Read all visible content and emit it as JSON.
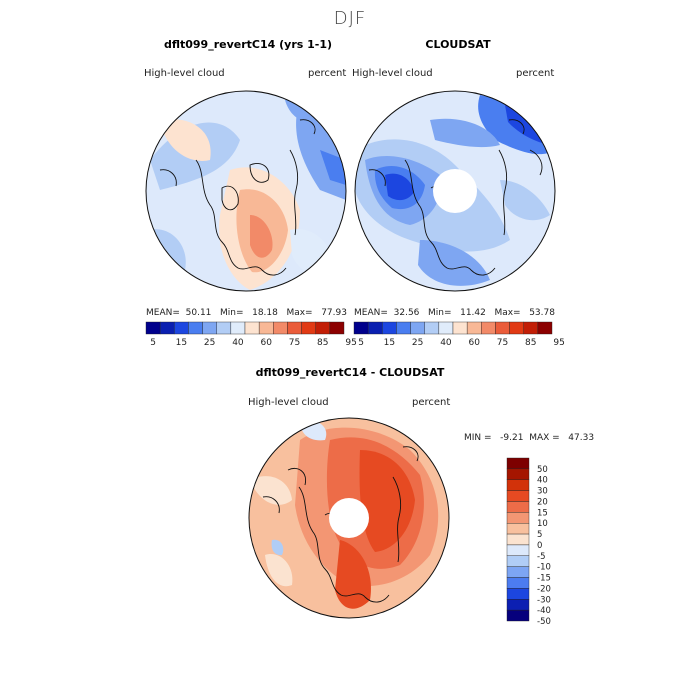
{
  "figure": {
    "title": "DJF"
  },
  "colors": {
    "abs": [
      "#00008c",
      "#0a1fb0",
      "#1c46e0",
      "#4a7ef0",
      "#7ea6f2",
      "#b2cdf5",
      "#e0ecfb",
      "#fde3d0",
      "#f8b896",
      "#f28a68",
      "#ea5c3a",
      "#e13a14",
      "#c21e06",
      "#8c0000"
    ],
    "diff": [
      "#06007d",
      "#0c1fb2",
      "#1c46e0",
      "#4c7cf0",
      "#7da5f3",
      "#b0cdf6",
      "#dde9fb",
      "#fbe3d0",
      "#f8c09e",
      "#f39673",
      "#ed6c48",
      "#e64a22",
      "#d2320a",
      "#a51500",
      "#7d0000"
    ]
  },
  "chart_data": [
    {
      "type": "heatmap",
      "projection": "polar-stereographic-north",
      "title": "dflt099_revertC14 (yrs 1-1)",
      "left_label": "High-level  cloud",
      "right_label": "percent",
      "stats": {
        "mean_label": "MEAN=",
        "mean": "50.11",
        "min_label": "Min=",
        "min": "18.18",
        "max_label": "Max=",
        "max": "77.93"
      },
      "colorbar_ticks": [
        "5",
        "15",
        "25",
        "40",
        "60",
        "75",
        "85",
        "95"
      ],
      "has_pole_gap": false
    },
    {
      "type": "heatmap",
      "projection": "polar-stereographic-north",
      "title": "CLOUDSAT",
      "left_label": "High-level  cloud",
      "right_label": "percent",
      "stats": {
        "mean_label": "MEAN=",
        "mean": "32.56",
        "min_label": "Min=",
        "min": "11.42",
        "max_label": "Max=",
        "max": "53.78"
      },
      "colorbar_ticks": [
        "5",
        "15",
        "25",
        "40",
        "60",
        "75",
        "85",
        "95"
      ],
      "has_pole_gap": true
    },
    {
      "type": "heatmap",
      "projection": "polar-stereographic-north",
      "title": "dflt099_revertC14 - CLOUDSAT",
      "left_label": "High-level  cloud",
      "right_label": "percent",
      "stats": {
        "min_label": "MIN =",
        "min": "-9.21",
        "max_label": "MAX =",
        "max": "47.33"
      },
      "colorbar_ticks": [
        "50",
        "40",
        "30",
        "20",
        "15",
        "10",
        "5",
        "0",
        "-5",
        "-10",
        "-15",
        "-20",
        "-30",
        "-40",
        "-50"
      ],
      "has_pole_gap": true
    }
  ]
}
